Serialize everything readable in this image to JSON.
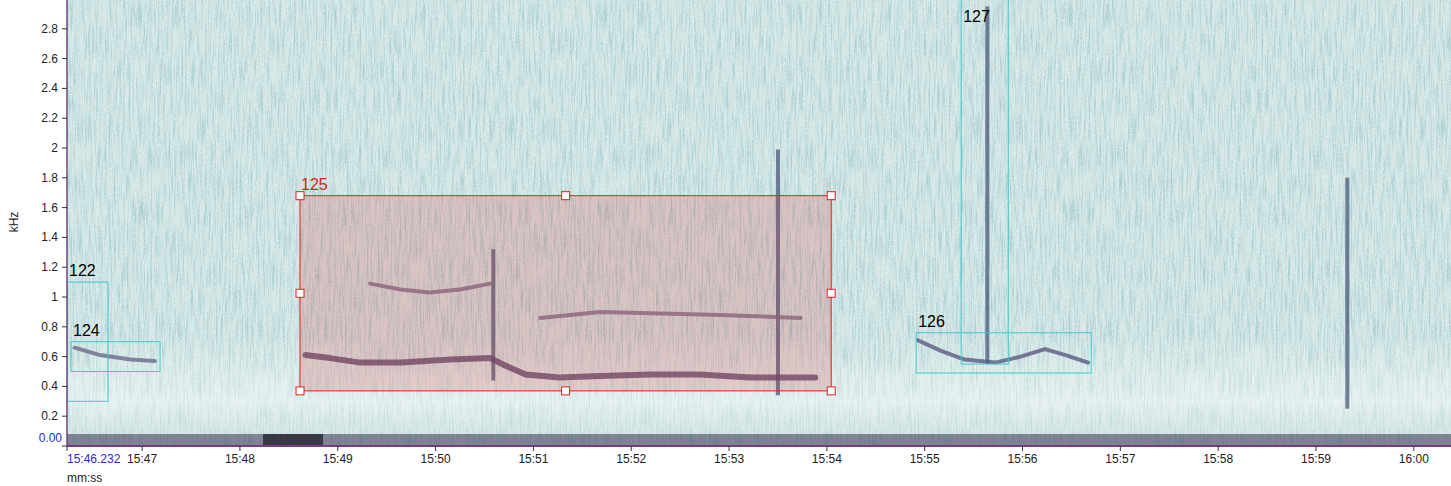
{
  "chart_data": {
    "type": "spectrogram",
    "x_label": "mm:ss",
    "y_label": "kHz",
    "xlim": [
      946.232,
      960.38
    ],
    "ylim": [
      0,
      3.0
    ],
    "xticks": [
      {
        "value": 946.232,
        "label": "15:46.232"
      },
      {
        "value": 947,
        "label": "15:47"
      },
      {
        "value": 948,
        "label": "15:48"
      },
      {
        "value": 949,
        "label": "15:49"
      },
      {
        "value": 950,
        "label": "15:50"
      },
      {
        "value": 951,
        "label": "15:51"
      },
      {
        "value": 952,
        "label": "15:52"
      },
      {
        "value": 953,
        "label": "15:53"
      },
      {
        "value": 954,
        "label": "15:54"
      },
      {
        "value": 955,
        "label": "15:55"
      },
      {
        "value": 956,
        "label": "15:56"
      },
      {
        "value": 957,
        "label": "15:57"
      },
      {
        "value": 958,
        "label": "15:58"
      },
      {
        "value": 959,
        "label": "15:59"
      },
      {
        "value": 960,
        "label": "16:00"
      }
    ],
    "yticks": [
      {
        "value": 0,
        "label": "0.00"
      },
      0.2,
      0.4,
      0.6,
      0.8,
      1,
      1.2,
      1.4,
      1.6,
      1.8,
      2,
      2.2,
      2.4,
      2.6,
      2.8
    ],
    "color": "#40c8cc",
    "annotations": [
      {
        "label": "122",
        "x": [
          946.232,
          946.651
        ],
        "y": [
          0.3,
          1.1
        ],
        "color": "#40c8cc"
      },
      {
        "label": "124",
        "x": [
          946.273,
          947.183
        ],
        "y": [
          0.5,
          0.7
        ],
        "color": "#40c8cc"
      },
      {
        "label": "125",
        "x": [
          948.614,
          954.044
        ],
        "y": [
          0.37,
          1.68
        ],
        "color": "#e02020"
      },
      {
        "label": "126",
        "x": [
          954.913,
          956.702
        ],
        "y": [
          0.49,
          0.76
        ],
        "color": "#40c8cc"
      },
      {
        "label": "127",
        "x": [
          955.373,
          955.854
        ],
        "y": [
          0.55,
          3.0
        ],
        "color": "#40c8cc"
      }
    ],
    "series": [
      {
        "color": "#5b4d72",
        "x": [
          948.67,
          948.92,
          949.23,
          949.64,
          950.15,
          950.56,
          950.71,
          950.92,
          951.27,
          951.68,
          952.19,
          952.7,
          953.22,
          953.88
        ],
        "values": [
          0.61,
          0.59,
          0.56,
          0.56,
          0.58,
          0.59,
          0.54,
          0.48,
          0.46,
          0.47,
          0.48,
          0.48,
          0.46,
          0.46
        ]
      },
      {
        "color": "#7a7090",
        "x": [
          949.33,
          949.64,
          949.94,
          950.25,
          950.56
        ],
        "values": [
          1.09,
          1.05,
          1.03,
          1.05,
          1.09
        ]
      },
      {
        "color": "#7a7090",
        "x": [
          951.07,
          951.68,
          952.3,
          952.91,
          953.73
        ],
        "values": [
          0.86,
          0.9,
          0.89,
          0.88,
          0.86
        ]
      },
      {
        "color": "#6a6a8a",
        "x": [
          946.31,
          946.57,
          946.88,
          947.13
        ],
        "values": [
          0.66,
          0.61,
          0.58,
          0.57
        ]
      },
      {
        "color": "#5b5a80",
        "x": [
          954.93,
          955.16,
          955.41,
          955.72,
          955.98,
          956.23,
          956.44,
          956.67
        ],
        "values": [
          0.71,
          0.64,
          0.58,
          0.56,
          0.6,
          0.65,
          0.61,
          0.56
        ]
      }
    ],
    "transients": [
      {
        "x": 950.59,
        "low": 0.44,
        "high": 1.32
      },
      {
        "x": 953.5,
        "low": 0.34,
        "high": 1.99
      },
      {
        "x": 955.64,
        "low": 0.55,
        "high": 2.95
      },
      {
        "x": 959.32,
        "low": 0.25,
        "high": 1.8
      }
    ]
  }
}
